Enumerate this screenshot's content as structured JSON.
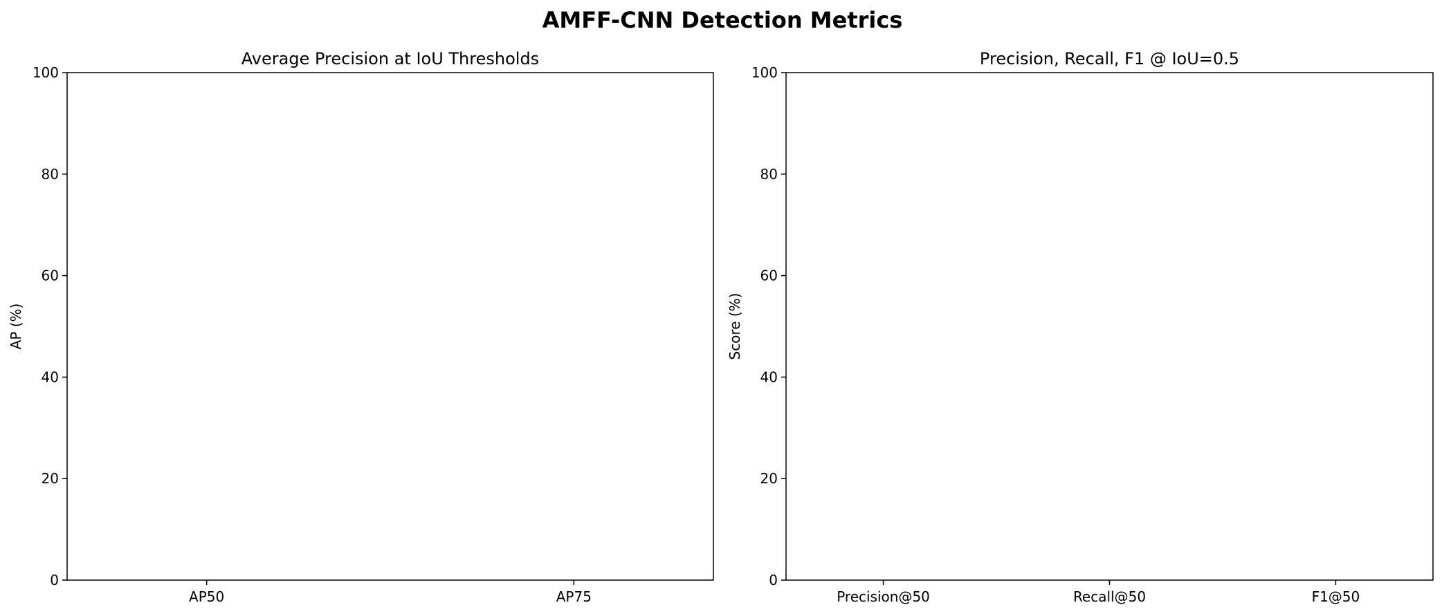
{
  "figure_title": "AMFF-CNN Detection Metrics",
  "chart_data": [
    {
      "type": "bar",
      "title": "Average Precision at IoU Thresholds",
      "xlabel": "",
      "ylabel": "AP (%)",
      "categories": [
        "AP50",
        "AP75"
      ],
      "values": [
        0,
        0
      ],
      "ylim": [
        0,
        100
      ],
      "yticks": [
        0,
        20,
        40,
        60,
        80,
        100
      ],
      "grid": false,
      "legend": "none",
      "bar_color": "#1f77b4"
    },
    {
      "type": "bar",
      "title": "Precision, Recall, F1 @ IoU=0.5",
      "xlabel": "",
      "ylabel": "Score (%)",
      "categories": [
        "Precision@50",
        "Recall@50",
        "F1@50"
      ],
      "values": [
        0,
        0,
        0
      ],
      "ylim": [
        0,
        100
      ],
      "yticks": [
        0,
        20,
        40,
        60,
        80,
        100
      ],
      "grid": false,
      "legend": "none",
      "bar_color": "#1f77b4"
    }
  ]
}
